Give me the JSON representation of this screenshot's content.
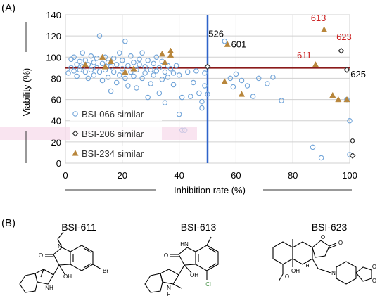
{
  "panel_a_label": "(A)",
  "panel_b_label": "(B)",
  "chart_data": {
    "type": "scatter",
    "xlabel": "Inhibition rate (%)",
    "ylabel": "Viability (%)",
    "xlim": [
      0,
      100
    ],
    "ylim": [
      0,
      140
    ],
    "x_ticks": [
      "0",
      "20",
      "40",
      "60",
      "80",
      "100"
    ],
    "y_ticks": [
      "0",
      "20",
      "40",
      "60",
      "80",
      "100",
      "120",
      "140"
    ],
    "grid": true,
    "legend_placement": "bottom-left",
    "reference_lines": [
      {
        "orientation": "vertical",
        "value": 50,
        "color": "#2e63c9"
      },
      {
        "orientation": "horizontal",
        "value": 90,
        "color": "#8b1a1a"
      }
    ],
    "series": [
      {
        "name": "BSI-066 similar",
        "marker": "open-circle",
        "color": "#6fa3d8",
        "points": [
          [
            1,
            85
          ],
          [
            2,
            98
          ],
          [
            2,
            90
          ],
          [
            3,
            100
          ],
          [
            3,
            87
          ],
          [
            4,
            93
          ],
          [
            4,
            82
          ],
          [
            5,
            96
          ],
          [
            5,
            88
          ],
          [
            6,
            104
          ],
          [
            6,
            91
          ],
          [
            7,
            86
          ],
          [
            7,
            97
          ],
          [
            8,
            80
          ],
          [
            8,
            93
          ],
          [
            9,
            101
          ],
          [
            9,
            88
          ],
          [
            10,
            95
          ],
          [
            10,
            83
          ],
          [
            11,
            90
          ],
          [
            11,
            99
          ],
          [
            12,
            86
          ],
          [
            12,
            120
          ],
          [
            13,
            94
          ],
          [
            13,
            78
          ],
          [
            14,
            100
          ],
          [
            14,
            88
          ],
          [
            15,
            81
          ],
          [
            15,
            95
          ],
          [
            16,
            91
          ],
          [
            16,
            68
          ],
          [
            17,
            86
          ],
          [
            17,
            99
          ],
          [
            18,
            93
          ],
          [
            18,
            76
          ],
          [
            19,
            104
          ],
          [
            19,
            83
          ],
          [
            20,
            97
          ],
          [
            20,
            89
          ],
          [
            21,
            115
          ],
          [
            21,
            80
          ],
          [
            22,
            92
          ],
          [
            22,
            73
          ],
          [
            23,
            86
          ],
          [
            23,
            101
          ],
          [
            24,
            95
          ],
          [
            24,
            82
          ],
          [
            25,
            88
          ],
          [
            25,
            71
          ],
          [
            26,
            98
          ],
          [
            26,
            93
          ],
          [
            27,
            80
          ],
          [
            27,
            104
          ],
          [
            28,
            91
          ],
          [
            28,
            85
          ],
          [
            29,
            62
          ],
          [
            29,
            97
          ],
          [
            30,
            88
          ],
          [
            30,
            75
          ],
          [
            31,
            94
          ],
          [
            31,
            83
          ],
          [
            32,
            100
          ],
          [
            32,
            87
          ],
          [
            33,
            66
          ],
          [
            33,
            90
          ],
          [
            34,
            96
          ],
          [
            34,
            79
          ],
          [
            35,
            57
          ],
          [
            35,
            86
          ],
          [
            36,
            92
          ],
          [
            36,
            81
          ],
          [
            37,
            89
          ],
          [
            38,
            85
          ],
          [
            38,
            74
          ],
          [
            39,
            92
          ],
          [
            40,
            83
          ],
          [
            40,
            46
          ],
          [
            41,
            62
          ],
          [
            41,
            31
          ],
          [
            42,
            31
          ],
          [
            43,
            86
          ],
          [
            44,
            63
          ],
          [
            45,
            76
          ],
          [
            46,
            87
          ],
          [
            47,
            66
          ],
          [
            48,
            58
          ],
          [
            48,
            52
          ],
          [
            49,
            73
          ],
          [
            49,
            85
          ],
          [
            50,
            65
          ],
          [
            56,
            115
          ],
          [
            58,
            80
          ],
          [
            59,
            72
          ],
          [
            60,
            84
          ],
          [
            62,
            78
          ],
          [
            64,
            73
          ],
          [
            66,
            63
          ],
          [
            68,
            80
          ],
          [
            71,
            75
          ],
          [
            73,
            81
          ],
          [
            76,
            59
          ],
          [
            87,
            15
          ],
          [
            90,
            5
          ],
          [
            99,
            60
          ],
          [
            100,
            40
          ],
          [
            100,
            8
          ]
        ]
      },
      {
        "name": "BSI-206 similar",
        "marker": "open-diamond",
        "color": "#333333",
        "points": [
          [
            50,
            91
          ],
          [
            97,
            106
          ],
          [
            99,
            88
          ],
          [
            101,
            21
          ],
          [
            101,
            7
          ]
        ]
      },
      {
        "name": "BSI-234 similar",
        "marker": "filled-triangle",
        "color": "#b8863b",
        "points": [
          [
            7,
            93
          ],
          [
            13,
            100
          ],
          [
            14,
            91
          ],
          [
            16,
            96
          ],
          [
            21,
            86
          ],
          [
            24,
            89
          ],
          [
            34,
            103
          ],
          [
            35,
            95
          ],
          [
            37,
            106
          ],
          [
            37,
            102
          ],
          [
            56,
            77
          ],
          [
            57,
            112
          ],
          [
            62,
            65
          ],
          [
            88,
            93
          ],
          [
            91,
            126
          ],
          [
            94,
            64
          ],
          [
            96,
            60
          ],
          [
            99,
            60
          ]
        ]
      }
    ],
    "annotations": [
      {
        "text": "526",
        "x": 53,
        "y": 119,
        "color": "#000000"
      },
      {
        "text": "601",
        "x": 61,
        "y": 109,
        "color": "#000000"
      },
      {
        "text": "613",
        "x": 89,
        "y": 134,
        "color": "#cc2222"
      },
      {
        "text": "623",
        "x": 98,
        "y": 116,
        "color": "#cc2222"
      },
      {
        "text": "611",
        "x": 84,
        "y": 99,
        "color": "#cc2222"
      },
      {
        "text": "625",
        "x": 103,
        "y": 81,
        "color": "#000000"
      }
    ]
  },
  "molecules": [
    {
      "name": "BSI-611",
      "labels": [
        "N",
        "O",
        "OH",
        "Br",
        "NH"
      ]
    },
    {
      "name": "BSI-613",
      "labels": [
        "HN",
        "O",
        "OH",
        "Cl",
        "N",
        "H"
      ]
    },
    {
      "name": "BSI-623",
      "labels": [
        "O",
        "O",
        "H",
        "OH",
        "O",
        "N",
        "O",
        "O"
      ]
    }
  ]
}
